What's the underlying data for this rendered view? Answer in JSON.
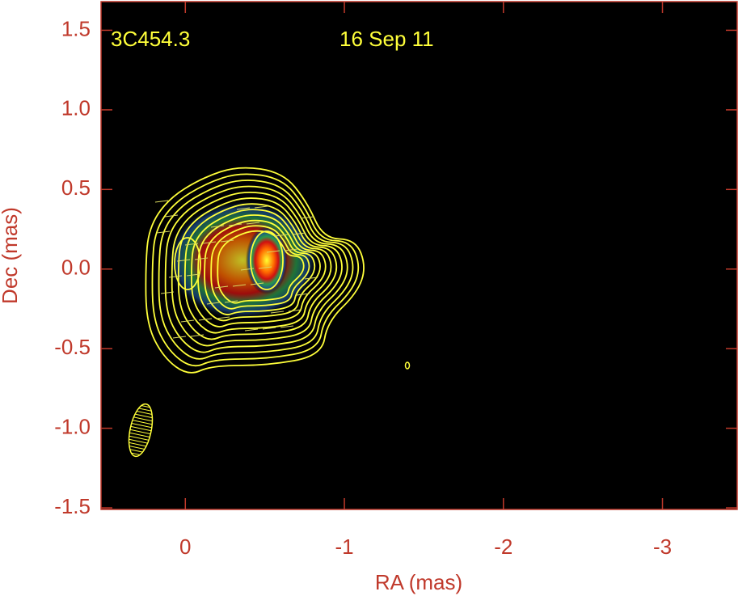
{
  "chart_data": {
    "type": "contour",
    "annotations": [
      "3C454.3",
      "16 Sep 11"
    ],
    "xlabel": "RA (mas)",
    "ylabel": "Dec (mas)",
    "xlim": [
      0.53,
      -3.47
    ],
    "xticks": [
      0,
      -1,
      -2,
      -3
    ],
    "ylim": [
      -1.51,
      1.68
    ],
    "yticks": [
      -1.5,
      {
        "value": -1.0,
        "label": "-1.0"
      },
      -0.5,
      {
        "value": 0.0,
        "label": "0.0"
      },
      0.5,
      {
        "value": 1.0,
        "label": "1.0"
      },
      1.5
    ],
    "axis_color": "#c0392b",
    "contour_color": "#ffff3a"
  }
}
